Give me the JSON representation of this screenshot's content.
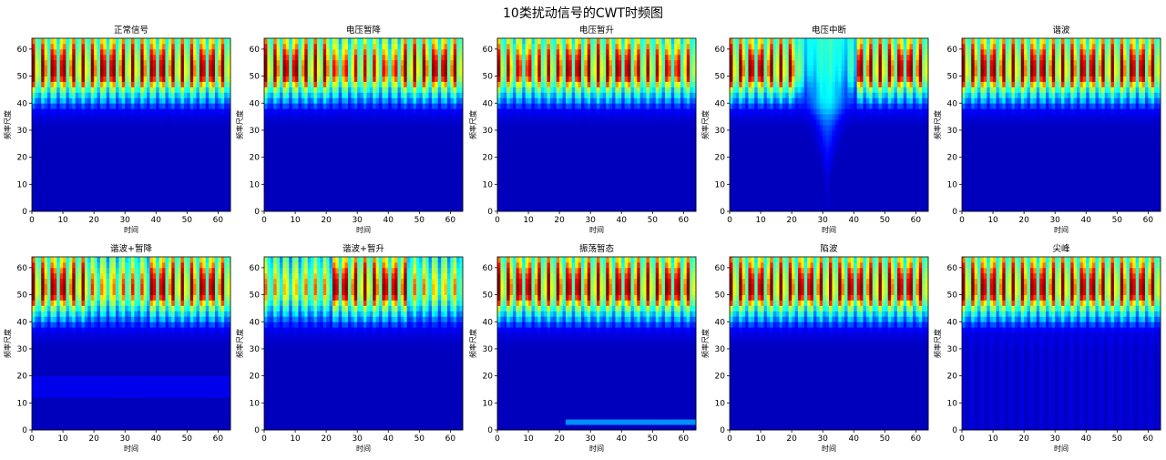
{
  "figure": {
    "title": "10类扰动信号的CWT时频图"
  },
  "colormap": {
    "name": "jet",
    "stops": [
      "#00007f",
      "#0000ff",
      "#00ffff",
      "#7fff7f",
      "#ffff00",
      "#ff0000",
      "#7f0000"
    ]
  },
  "chart_data": [
    {
      "type": "heatmap",
      "title": "正常信号",
      "xlabel": "时间",
      "ylabel": "频率尺度",
      "xlim": [
        0,
        64
      ],
      "ylim": [
        0,
        64
      ],
      "xticks": [
        0,
        10,
        20,
        30,
        40,
        50,
        60
      ],
      "yticks": [
        0,
        10,
        20,
        30,
        40,
        50,
        60
      ],
      "pattern": "normal",
      "grid": false
    },
    {
      "type": "heatmap",
      "title": "电压暂降",
      "xlabel": "时间",
      "ylabel": "频率尺度",
      "xlim": [
        0,
        64
      ],
      "ylim": [
        0,
        64
      ],
      "xticks": [
        0,
        10,
        20,
        30,
        40,
        50,
        60
      ],
      "yticks": [
        0,
        10,
        20,
        30,
        40,
        50,
        60
      ],
      "pattern": "sag",
      "grid": false
    },
    {
      "type": "heatmap",
      "title": "电压暂升",
      "xlabel": "时间",
      "ylabel": "频率尺度",
      "xlim": [
        0,
        64
      ],
      "ylim": [
        0,
        64
      ],
      "xticks": [
        0,
        10,
        20,
        30,
        40,
        50,
        60
      ],
      "yticks": [
        0,
        10,
        20,
        30,
        40,
        50,
        60
      ],
      "pattern": "swell",
      "grid": false
    },
    {
      "type": "heatmap",
      "title": "电压中断",
      "xlabel": "时间",
      "ylabel": "频率尺度",
      "xlim": [
        0,
        64
      ],
      "ylim": [
        0,
        64
      ],
      "xticks": [
        0,
        10,
        20,
        30,
        40,
        50,
        60
      ],
      "yticks": [
        0,
        10,
        20,
        30,
        40,
        50,
        60
      ],
      "pattern": "interrupt",
      "grid": false
    },
    {
      "type": "heatmap",
      "title": "谐波",
      "xlabel": "时间",
      "ylabel": "频率尺度",
      "xlim": [
        0,
        64
      ],
      "ylim": [
        0,
        64
      ],
      "xticks": [
        0,
        10,
        20,
        30,
        40,
        50,
        60
      ],
      "yticks": [
        0,
        10,
        20,
        30,
        40,
        50,
        60
      ],
      "pattern": "harmonic",
      "grid": false
    },
    {
      "type": "heatmap",
      "title": "谐波+暂降",
      "xlabel": "时间",
      "ylabel": "频率尺度",
      "xlim": [
        0,
        64
      ],
      "ylim": [
        0,
        64
      ],
      "xticks": [
        0,
        10,
        20,
        30,
        40,
        50,
        60
      ],
      "yticks": [
        0,
        10,
        20,
        30,
        40,
        50,
        60
      ],
      "pattern": "harmonic_sag",
      "grid": false
    },
    {
      "type": "heatmap",
      "title": "谐波+暂升",
      "xlabel": "时间",
      "ylabel": "频率尺度",
      "xlim": [
        0,
        64
      ],
      "ylim": [
        0,
        64
      ],
      "xticks": [
        0,
        10,
        20,
        30,
        40,
        50,
        60
      ],
      "yticks": [
        0,
        10,
        20,
        30,
        40,
        50,
        60
      ],
      "pattern": "harmonic_swell",
      "grid": false
    },
    {
      "type": "heatmap",
      "title": "振荡暂态",
      "xlabel": "时间",
      "ylabel": "频率尺度",
      "xlim": [
        0,
        64
      ],
      "ylim": [
        0,
        64
      ],
      "xticks": [
        0,
        10,
        20,
        30,
        40,
        50,
        60
      ],
      "yticks": [
        0,
        10,
        20,
        30,
        40,
        50,
        60
      ],
      "pattern": "oscillation",
      "grid": false
    },
    {
      "type": "heatmap",
      "title": "陷波",
      "xlabel": "时间",
      "ylabel": "频率尺度",
      "xlim": [
        0,
        64
      ],
      "ylim": [
        0,
        64
      ],
      "xticks": [
        0,
        10,
        20,
        30,
        40,
        50,
        60
      ],
      "yticks": [
        0,
        10,
        20,
        30,
        40,
        50,
        60
      ],
      "pattern": "notch",
      "grid": false
    },
    {
      "type": "heatmap",
      "title": "尖峰",
      "xlabel": "时间",
      "ylabel": "频率尺度",
      "xlim": [
        0,
        64
      ],
      "ylim": [
        0,
        64
      ],
      "xticks": [
        0,
        10,
        20,
        30,
        40,
        50,
        60
      ],
      "yticks": [
        0,
        10,
        20,
        30,
        40,
        50,
        60
      ],
      "pattern": "spike",
      "grid": false
    }
  ]
}
